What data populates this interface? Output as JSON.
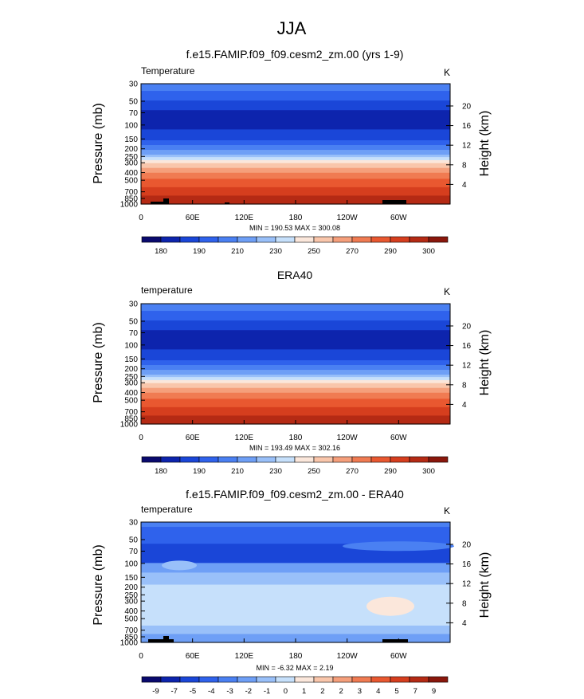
{
  "figure": {
    "title": "JJA"
  },
  "chart_data": [
    {
      "type": "heatmap",
      "title": "f.e15.FAMIP.f09_f09.cesm2_zm.00 (yrs 1-9)",
      "variable_label": "Temperature",
      "units": "K",
      "ylabel": "Pressure (mb)",
      "y2label": "Height (km)",
      "x_ticks": [
        "0",
        "60E",
        "120E",
        "180",
        "120W",
        "60W"
      ],
      "y_ticks": [
        "30",
        "50",
        "70",
        "100",
        "150",
        "200",
        "250",
        "300",
        "400",
        "500",
        "700",
        "850",
        "1000"
      ],
      "height_ticks": [
        "20",
        "16",
        "12",
        "8",
        "4"
      ],
      "stats": "MIN = 190.53  MAX = 300.08",
      "colorbar_labels": [
        "180",
        "190",
        "210",
        "230",
        "250",
        "270",
        "290",
        "300"
      ],
      "min": 190.53,
      "max": 300.08
    },
    {
      "type": "heatmap",
      "title": "ERA40",
      "variable_label": "temperature",
      "units": "K",
      "ylabel": "Pressure (mb)",
      "y2label": "Height (km)",
      "x_ticks": [
        "0",
        "60E",
        "120E",
        "180",
        "120W",
        "60W"
      ],
      "y_ticks": [
        "30",
        "50",
        "70",
        "100",
        "150",
        "200",
        "250",
        "300",
        "400",
        "500",
        "700",
        "850",
        "1000"
      ],
      "height_ticks": [
        "20",
        "16",
        "12",
        "8",
        "4"
      ],
      "stats": "MIN = 193.49  MAX = 302.16",
      "colorbar_labels": [
        "180",
        "190",
        "210",
        "230",
        "250",
        "270",
        "290",
        "300"
      ],
      "min": 193.49,
      "max": 302.16
    },
    {
      "type": "heatmap",
      "title": "f.e15.FAMIP.f09_f09.cesm2_zm.00 - ERA40",
      "variable_label": "temperature",
      "units": "K",
      "ylabel": "Pressure (mb)",
      "y2label": "Height (km)",
      "x_ticks": [
        "0",
        "60E",
        "120E",
        "180",
        "120W",
        "60W"
      ],
      "y_ticks": [
        "30",
        "50",
        "70",
        "100",
        "150",
        "200",
        "250",
        "300",
        "400",
        "500",
        "700",
        "850",
        "1000"
      ],
      "height_ticks": [
        "20",
        "16",
        "12",
        "8",
        "4"
      ],
      "stats": "MIN = -6.32  MAX =  2.19",
      "colorbar_labels": [
        "-9",
        "-7",
        "-5",
        "-4",
        "-3",
        "-2",
        "-1",
        "0",
        "1",
        "2",
        "2",
        "3",
        "4",
        "5",
        "7",
        "9"
      ],
      "min": -6.32,
      "max": 2.19
    }
  ]
}
